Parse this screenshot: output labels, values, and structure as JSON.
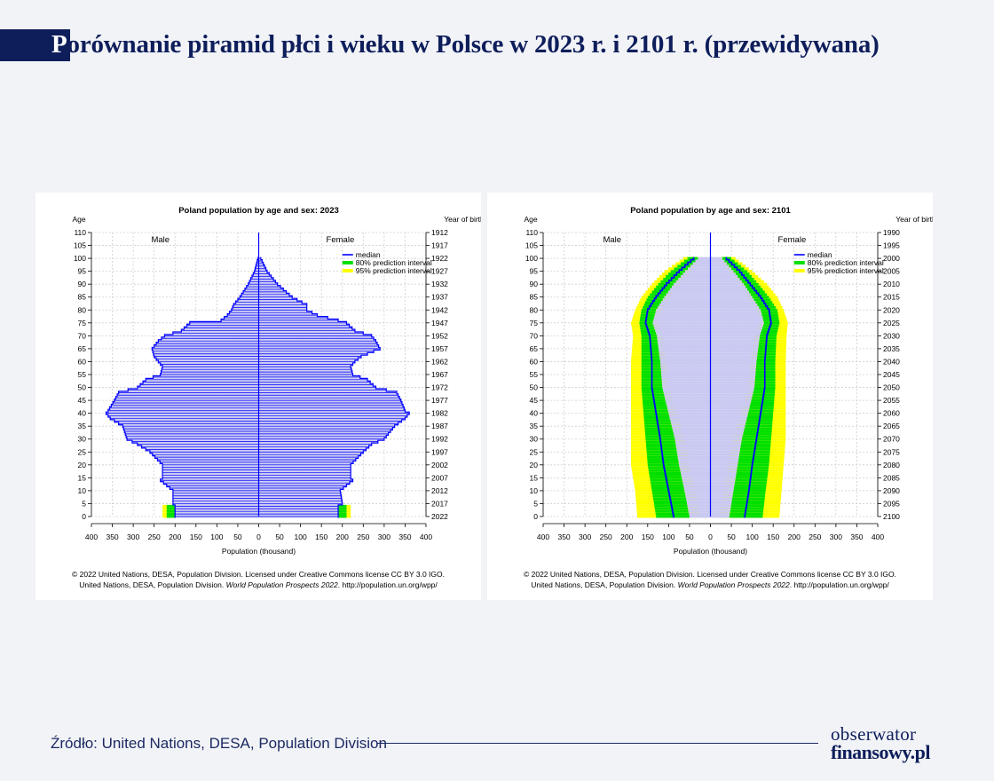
{
  "page": {
    "title_first": "P",
    "title_rest": "orównanie piramid płci i wieku w Polsce w 2023 r. i 2101 r. (przewidywana)",
    "source": "Źródło: United Nations, DESA, Population Division",
    "logo_line1": "obserwator",
    "logo_line2": "finansowy.pl"
  },
  "colors": {
    "background": "#f2f3f7",
    "brand_navy": "#0e1e5b",
    "median": "#0000ff",
    "bar_fill": "#c9c9f2",
    "pi80": "#00e000",
    "pi95": "#ffff00"
  },
  "chart_data": [
    {
      "type": "population-pyramid",
      "title": "Poland population by age and sex: 2023",
      "ylabel_left": "Age",
      "ylabel_right": "Year of birth",
      "xlabel": "Population (thousand)",
      "male_label": "Male",
      "female_label": "Female",
      "legend": [
        "median",
        "80% prediction interval",
        "95% prediction interval"
      ],
      "legend_position": "top-right",
      "xlim": [
        -400,
        400
      ],
      "x_ticks": [
        -400,
        -350,
        -300,
        -250,
        -200,
        -150,
        -100,
        -50,
        0,
        50,
        100,
        150,
        200,
        250,
        300,
        350,
        400
      ],
      "x_tick_labels": [
        "400",
        "350",
        "300",
        "250",
        "200",
        "150",
        "100",
        "50",
        "0",
        "50",
        "100",
        "150",
        "200",
        "250",
        "300",
        "350",
        "400"
      ],
      "age_ticks": [
        0,
        5,
        10,
        15,
        20,
        25,
        30,
        35,
        40,
        45,
        50,
        55,
        60,
        65,
        70,
        75,
        80,
        85,
        90,
        95,
        100,
        105,
        110
      ],
      "birth_year_labels": [
        "2022",
        "2017",
        "2012",
        "2007",
        "2002",
        "1997",
        "1992",
        "1987",
        "1982",
        "1977",
        "1972",
        "1967",
        "1962",
        "1957",
        "1952",
        "1947",
        "1942",
        "1937",
        "1932",
        "1927",
        "1922",
        "1917",
        "1912"
      ],
      "grid": true,
      "age_knots": [
        0,
        4,
        5,
        10,
        14,
        15,
        20,
        25,
        28,
        30,
        35,
        38,
        40,
        41,
        45,
        48,
        50,
        53,
        55,
        58,
        60,
        62,
        65,
        68,
        70,
        72,
        75,
        76,
        78,
        80,
        82,
        85,
        90,
        95,
        100,
        105,
        110
      ],
      "male_knots": [
        200,
        200,
        205,
        205,
        235,
        230,
        230,
        260,
        290,
        315,
        325,
        355,
        365,
        360,
        345,
        335,
        290,
        270,
        235,
        230,
        240,
        250,
        255,
        240,
        225,
        185,
        165,
        90,
        75,
        65,
        60,
        45,
        25,
        10,
        2,
        0,
        0
      ],
      "female_knots": [
        190,
        190,
        200,
        195,
        225,
        220,
        220,
        250,
        270,
        300,
        325,
        350,
        360,
        350,
        340,
        330,
        280,
        260,
        225,
        220,
        230,
        245,
        290,
        280,
        270,
        230,
        210,
        190,
        140,
        115,
        115,
        80,
        45,
        20,
        5,
        1,
        0
      ],
      "male_pi80_knots": [
        220,
        220,
        205,
        205,
        235,
        230,
        230,
        260,
        290,
        315,
        325,
        355,
        365,
        360,
        345,
        335,
        290,
        270,
        235,
        230,
        240,
        250,
        255,
        240,
        225,
        185,
        165,
        90,
        75,
        65,
        60,
        45,
        25,
        10,
        2,
        0,
        0
      ],
      "female_pi80_knots": [
        210,
        210,
        200,
        195,
        225,
        220,
        220,
        250,
        270,
        300,
        325,
        350,
        360,
        350,
        340,
        330,
        280,
        260,
        225,
        220,
        230,
        245,
        290,
        280,
        270,
        230,
        210,
        190,
        140,
        115,
        115,
        80,
        45,
        20,
        5,
        1,
        0
      ],
      "male_pi95_knots": [
        230,
        230,
        205,
        205,
        235,
        230,
        230,
        260,
        290,
        315,
        325,
        355,
        365,
        360,
        345,
        335,
        290,
        270,
        235,
        230,
        240,
        250,
        255,
        240,
        225,
        185,
        165,
        90,
        75,
        65,
        60,
        45,
        25,
        10,
        2,
        0,
        0
      ],
      "female_pi95_knots": [
        220,
        220,
        200,
        195,
        225,
        220,
        220,
        250,
        270,
        300,
        325,
        350,
        360,
        350,
        340,
        330,
        280,
        260,
        225,
        220,
        230,
        245,
        290,
        280,
        270,
        230,
        210,
        190,
        140,
        115,
        115,
        80,
        45,
        20,
        5,
        1,
        0
      ],
      "copyright_line1": "© 2022 United Nations, DESA, Population Division. Licensed under Creative Commons license CC BY 3.0 IGO.",
      "copyright_line2a": "United Nations, DESA, Population Division. ",
      "copyright_line2b": "World Population Prospects 2022",
      "copyright_line2c": ". http://population.un.org/wpp/"
    },
    {
      "type": "population-pyramid",
      "title": "Poland population by age and sex: 2101",
      "ylabel_left": "Age",
      "ylabel_right": "Year of birth",
      "xlabel": "Population (thousand)",
      "male_label": "Male",
      "female_label": "Female",
      "legend": [
        "median",
        "80% prediction interval",
        "95% prediction interval"
      ],
      "legend_position": "top-right",
      "xlim": [
        -400,
        400
      ],
      "x_ticks": [
        -400,
        -350,
        -300,
        -250,
        -200,
        -150,
        -100,
        -50,
        0,
        50,
        100,
        150,
        200,
        250,
        300,
        350,
        400
      ],
      "x_tick_labels": [
        "400",
        "350",
        "300",
        "250",
        "200",
        "150",
        "100",
        "50",
        "0",
        "50",
        "100",
        "150",
        "200",
        "250",
        "300",
        "350",
        "400"
      ],
      "age_ticks": [
        0,
        5,
        10,
        15,
        20,
        25,
        30,
        35,
        40,
        45,
        50,
        55,
        60,
        65,
        70,
        75,
        80,
        85,
        90,
        95,
        100,
        105,
        110
      ],
      "birth_year_labels": [
        "2100",
        "2095",
        "2090",
        "2085",
        "2080",
        "2075",
        "2070",
        "2065",
        "2060",
        "2055",
        "2050",
        "2045",
        "2040",
        "2035",
        "2030",
        "2025",
        "2020",
        "2015",
        "2010",
        "2005",
        "2000",
        "1995",
        "1990"
      ],
      "grid": true,
      "age_knots": [
        0,
        10,
        20,
        30,
        40,
        50,
        60,
        70,
        75,
        80,
        85,
        90,
        95,
        100,
        105,
        110
      ],
      "male_knots": [
        88,
        100,
        112,
        120,
        130,
        140,
        140,
        145,
        155,
        150,
        130,
        105,
        75,
        40,
        10,
        0
      ],
      "female_knots": [
        82,
        92,
        100,
        110,
        120,
        130,
        130,
        135,
        145,
        140,
        120,
        95,
        70,
        38,
        10,
        0
      ],
      "male_pi80_lo": [
        50,
        62,
        75,
        85,
        100,
        115,
        120,
        128,
        138,
        130,
        110,
        88,
        60,
        30,
        8,
        0
      ],
      "male_pi80_hi": [
        130,
        140,
        150,
        155,
        160,
        165,
        165,
        165,
        170,
        165,
        150,
        125,
        95,
        55,
        15,
        0
      ],
      "female_pi80_lo": [
        45,
        55,
        65,
        75,
        90,
        105,
        110,
        118,
        128,
        120,
        100,
        80,
        55,
        28,
        8,
        0
      ],
      "female_pi80_hi": [
        125,
        132,
        140,
        145,
        150,
        155,
        155,
        158,
        165,
        160,
        140,
        115,
        88,
        50,
        15,
        0
      ],
      "male_pi95_lo": [
        25,
        35,
        50,
        60,
        80,
        100,
        105,
        115,
        125,
        118,
        98,
        78,
        50,
        25,
        5,
        0
      ],
      "male_pi95_hi": [
        175,
        180,
        190,
        190,
        190,
        190,
        190,
        185,
        190,
        180,
        165,
        140,
        110,
        65,
        20,
        0
      ],
      "female_pi95_lo": [
        20,
        30,
        42,
        52,
        72,
        90,
        95,
        105,
        118,
        110,
        90,
        70,
        45,
        22,
        5,
        0
      ],
      "female_pi95_hi": [
        165,
        170,
        175,
        180,
        180,
        180,
        180,
        182,
        185,
        175,
        160,
        135,
        100,
        60,
        20,
        0
      ],
      "copyright_line1": "© 2022 United Nations, DESA, Population Division. Licensed under Creative Commons license CC BY 3.0 IGO.",
      "copyright_line2a": "United Nations, DESA, Population Division. ",
      "copyright_line2b": "World Population Prospects 2022",
      "copyright_line2c": ". http://population.un.org/wpp/"
    }
  ]
}
